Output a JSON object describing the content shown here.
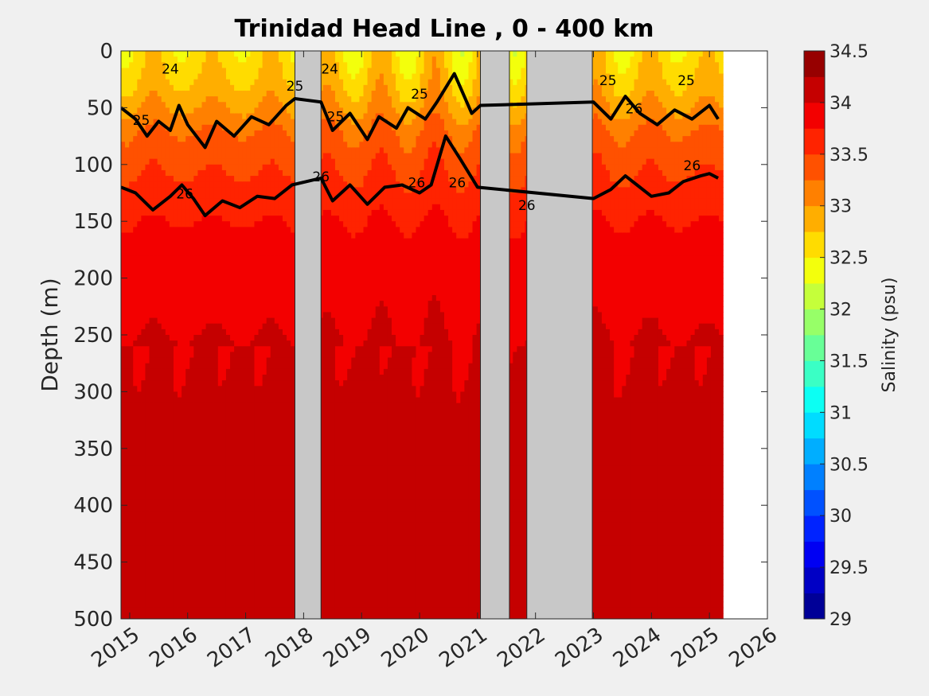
{
  "chart_data": {
    "type": "heatmap",
    "title": "Trinidad Head Line , 0 - 400 km",
    "xlabel": "",
    "ylabel": "Depth (m)",
    "xlim": [
      2014.85,
      2026
    ],
    "ylim": [
      0,
      500
    ],
    "y_reversed": true,
    "x_ticks": [
      "2015",
      "2016",
      "2017",
      "2018",
      "2019",
      "2020",
      "2021",
      "2022",
      "2023",
      "2024",
      "2025",
      "2026"
    ],
    "y_ticks": [
      "0",
      "50",
      "100",
      "150",
      "200",
      "250",
      "300",
      "350",
      "400",
      "450",
      "500"
    ],
    "colorbar": {
      "label": "Salinity (psu)",
      "min": 29,
      "max": 34.5,
      "step": 0.25,
      "tick_labels": [
        "29",
        "29.5",
        "30",
        "30.5",
        "31",
        "31.5",
        "32",
        "32.5",
        "33",
        "33.5",
        "34",
        "34.5"
      ],
      "colormap": "jet"
    },
    "no_data_color": "#c8c8c8",
    "no_data_periods": [
      [
        2017.85,
        2018.3
      ],
      [
        2021.05,
        2021.55
      ],
      [
        2021.85,
        2022.98
      ]
    ],
    "depth_salinity_profile": {
      "depth": [
        0,
        25,
        50,
        75,
        100,
        125,
        150,
        200,
        250,
        300,
        350,
        400,
        500
      ],
      "salinity": [
        32.6,
        32.75,
        33.0,
        33.3,
        33.45,
        33.6,
        33.75,
        33.95,
        34.0,
        34.05,
        34.1,
        34.15,
        34.2
      ]
    },
    "isopycnal_labels": [
      {
        "year": 2015.2,
        "depth": 65,
        "label": "25"
      },
      {
        "year": 2015.7,
        "depth": 20,
        "label": "24"
      },
      {
        "year": 2015.95,
        "depth": 130,
        "label": "26"
      },
      {
        "year": 2017.85,
        "depth": 35,
        "label": "25"
      },
      {
        "year": 2018.45,
        "depth": 20,
        "label": "24"
      },
      {
        "year": 2018.55,
        "depth": 62,
        "label": "25"
      },
      {
        "year": 2018.3,
        "depth": 115,
        "label": "26"
      },
      {
        "year": 2020.0,
        "depth": 42,
        "label": "25"
      },
      {
        "year": 2019.95,
        "depth": 120,
        "label": "26"
      },
      {
        "year": 2020.65,
        "depth": 120,
        "label": "26"
      },
      {
        "year": 2021.85,
        "depth": 140,
        "label": "26"
      },
      {
        "year": 2023.25,
        "depth": 30,
        "label": "25"
      },
      {
        "year": 2023.7,
        "depth": 55,
        "label": "26"
      },
      {
        "year": 2024.6,
        "depth": 30,
        "label": "25"
      },
      {
        "year": 2024.7,
        "depth": 105,
        "label": "26"
      }
    ],
    "sigma_26_depth": {
      "x": [
        2014.85,
        2015.1,
        2015.4,
        2015.7,
        2015.9,
        2016.1,
        2016.3,
        2016.6,
        2016.9,
        2017.2,
        2017.5,
        2017.8,
        2018.3,
        2018.5,
        2018.8,
        2019.1,
        2019.4,
        2019.7,
        2020.0,
        2020.2,
        2020.45,
        2020.7,
        2021.0,
        2023.0,
        2023.3,
        2023.55,
        2023.75,
        2024.0,
        2024.3,
        2024.55,
        2024.85,
        2025.0,
        2025.15
      ],
      "depth": [
        120,
        125,
        140,
        128,
        118,
        130,
        145,
        132,
        138,
        128,
        130,
        118,
        112,
        132,
        118,
        135,
        120,
        118,
        125,
        118,
        75,
        95,
        120,
        130,
        122,
        110,
        118,
        128,
        125,
        115,
        110,
        108,
        112
      ]
    },
    "sigma_25_depth": {
      "x": [
        2014.85,
        2015.1,
        2015.3,
        2015.5,
        2015.7,
        2015.85,
        2016.0,
        2016.3,
        2016.5,
        2016.8,
        2017.1,
        2017.4,
        2017.7,
        2017.85,
        2018.3,
        2018.5,
        2018.8,
        2019.1,
        2019.3,
        2019.6,
        2019.8,
        2020.1,
        2020.3,
        2020.6,
        2020.9,
        2021.05,
        2023.0,
        2023.3,
        2023.55,
        2023.8,
        2024.1,
        2024.4,
        2024.7,
        2025.0,
        2025.15
      ],
      "depth": [
        50,
        60,
        75,
        62,
        70,
        48,
        65,
        85,
        62,
        75,
        58,
        65,
        48,
        42,
        45,
        70,
        55,
        78,
        58,
        68,
        50,
        60,
        45,
        20,
        55,
        48,
        45,
        60,
        40,
        55,
        65,
        52,
        60,
        48,
        60
      ]
    }
  }
}
